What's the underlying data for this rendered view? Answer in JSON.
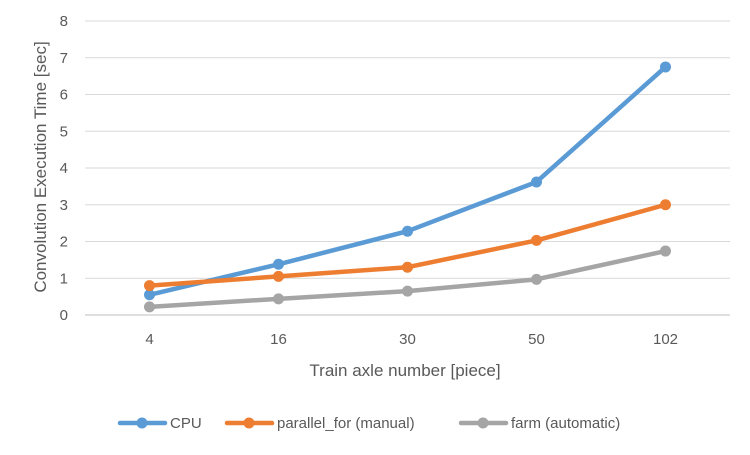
{
  "chart_data": {
    "type": "line",
    "title": "",
    "xlabel": "Train axle number [piece]",
    "ylabel": "Convolution Execution Time [sec]",
    "categories": [
      "4",
      "16",
      "30",
      "50",
      "102"
    ],
    "ylim": [
      0,
      8
    ],
    "yticks": [
      "0",
      "1",
      "2",
      "3",
      "4",
      "5",
      "6",
      "7",
      "8"
    ],
    "grid": true,
    "legend_position": "bottom",
    "series": [
      {
        "name": "CPU",
        "color": "#5b9bd5",
        "values": [
          0.55,
          1.38,
          2.28,
          3.62,
          6.75
        ]
      },
      {
        "name": "parallel_for (manual)",
        "color": "#ed7d31",
        "values": [
          0.8,
          1.05,
          1.3,
          2.03,
          3.0
        ]
      },
      {
        "name": "farm (automatic)",
        "color": "#a5a5a5",
        "values": [
          0.22,
          0.44,
          0.65,
          0.97,
          1.74
        ]
      }
    ]
  }
}
